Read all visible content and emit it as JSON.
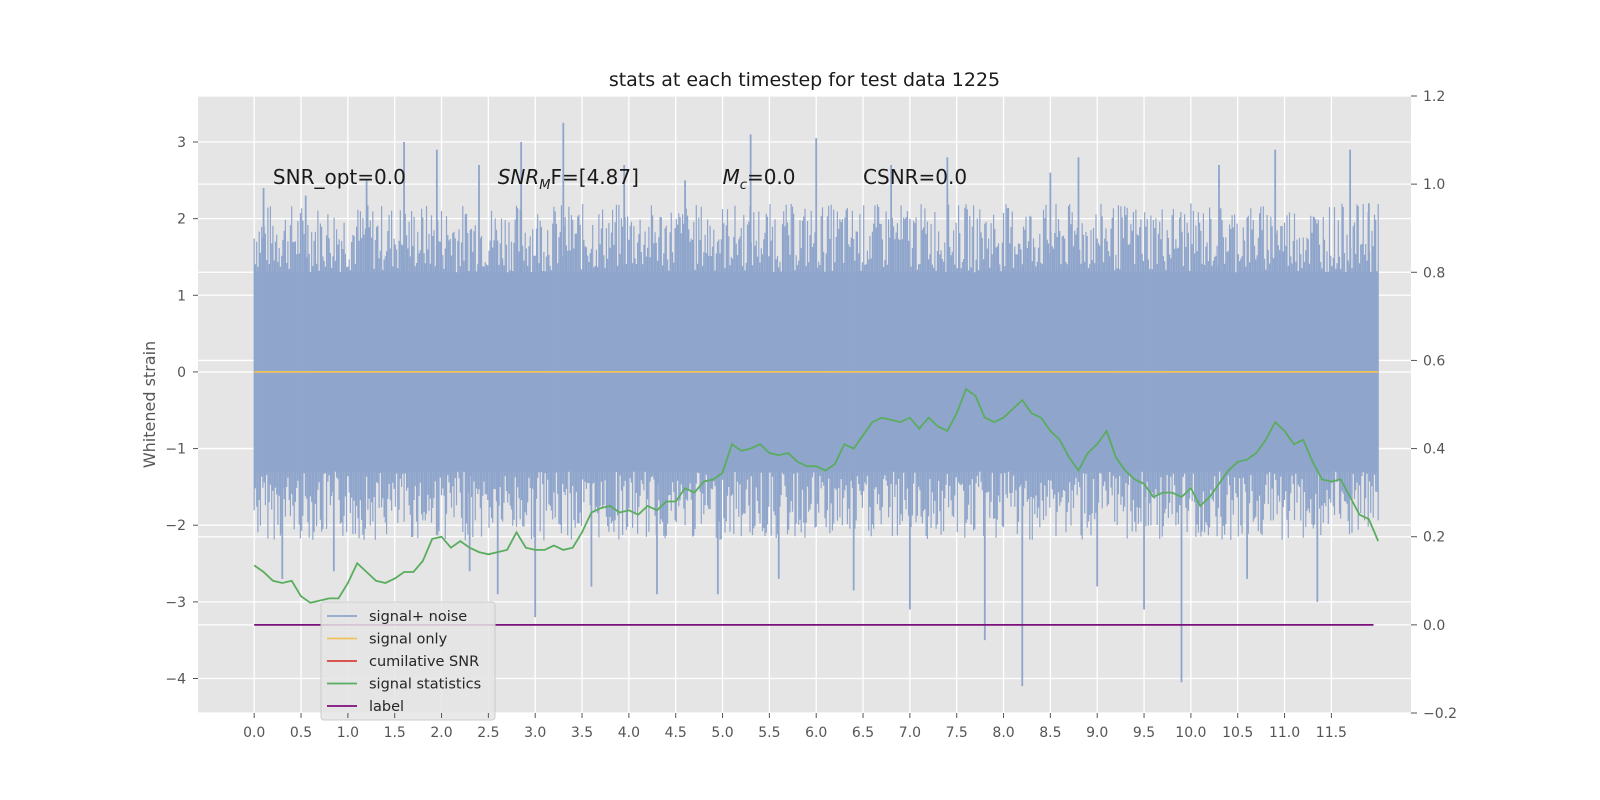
{
  "chart_data": {
    "type": "line",
    "title": "stats at each timestep for test data 1225",
    "xlabel": "",
    "ylabel": "Whitened strain",
    "y2label": "",
    "xlim": [
      -0.6,
      12.35
    ],
    "ylim": [
      -4.45,
      3.6
    ],
    "y2lim": [
      -0.2,
      1.2
    ],
    "grid": true,
    "x_ticks": [
      "0.0",
      "0.5",
      "1.0",
      "1.5",
      "2.0",
      "2.5",
      "3.0",
      "3.5",
      "4.0",
      "4.5",
      "5.0",
      "5.5",
      "6.0",
      "6.5",
      "7.0",
      "7.5",
      "8.0",
      "8.5",
      "9.0",
      "9.5",
      "10.0",
      "10.5",
      "11.0",
      "11.5"
    ],
    "y_ticks": [
      "3",
      "2",
      "1",
      "0",
      "−1",
      "−2",
      "−3",
      "−4"
    ],
    "y2_ticks": [
      "1.2",
      "1.0",
      "0.8",
      "0.6",
      "0.4",
      "0.2",
      "0.0",
      "−0.2"
    ],
    "annotations": [
      {
        "text": "SNR_opt=0.0",
        "x": 0.2,
        "y": 2.45
      },
      {
        "text": "SNR",
        "sub": "M",
        "suffix": "F=[4.87]",
        "x": 2.6,
        "y": 2.45
      },
      {
        "text": "M",
        "sub": "c",
        "suffix": "=0.0",
        "x": 5.0,
        "y": 2.45
      },
      {
        "text": "CSNR=0.0",
        "x": 6.5,
        "y": 2.45
      }
    ],
    "legend": {
      "position": "lower-left",
      "entries": [
        {
          "label": "signal+ noise",
          "color": "#8fa5cc"
        },
        {
          "label": "signal only",
          "color": "#f2c25c"
        },
        {
          "label": "cumilative SNR",
          "color": "#d8403a"
        },
        {
          "label": "signal statistics",
          "color": "#5aad5f"
        },
        {
          "label": "label",
          "color": "#7b0f7b"
        }
      ]
    },
    "series": [
      {
        "name": "signal+ noise",
        "axis": "left",
        "color": "#8fa5cc",
        "x_range": [
          0.0,
          12.0
        ],
        "band_envelope": {
          "upper": 1.3,
          "lower": -1.3
        },
        "spikes": [
          {
            "x": 0.1,
            "y": 2.4
          },
          {
            "x": 0.3,
            "y": -2.7
          },
          {
            "x": 0.55,
            "y": 2.3
          },
          {
            "x": 0.85,
            "y": -2.6
          },
          {
            "x": 1.2,
            "y": 2.5
          },
          {
            "x": 1.6,
            "y": 3.0
          },
          {
            "x": 1.95,
            "y": 2.9
          },
          {
            "x": 2.3,
            "y": -2.6
          },
          {
            "x": 2.4,
            "y": 2.7
          },
          {
            "x": 2.6,
            "y": -2.9
          },
          {
            "x": 2.85,
            "y": 3.0
          },
          {
            "x": 3.0,
            "y": -3.2
          },
          {
            "x": 3.3,
            "y": 3.25
          },
          {
            "x": 3.6,
            "y": -2.8
          },
          {
            "x": 3.95,
            "y": 2.7
          },
          {
            "x": 4.3,
            "y": -2.9
          },
          {
            "x": 4.6,
            "y": 2.5
          },
          {
            "x": 4.95,
            "y": -2.9
          },
          {
            "x": 5.3,
            "y": 3.1
          },
          {
            "x": 5.6,
            "y": -2.7
          },
          {
            "x": 6.0,
            "y": 3.05
          },
          {
            "x": 6.4,
            "y": -2.85
          },
          {
            "x": 6.8,
            "y": 2.7
          },
          {
            "x": 7.0,
            "y": -3.1
          },
          {
            "x": 7.4,
            "y": 2.8
          },
          {
            "x": 7.8,
            "y": -3.5
          },
          {
            "x": 8.2,
            "y": -4.1
          },
          {
            "x": 8.5,
            "y": 2.6
          },
          {
            "x": 8.8,
            "y": 2.8
          },
          {
            "x": 9.0,
            "y": -2.8
          },
          {
            "x": 9.5,
            "y": -3.1
          },
          {
            "x": 9.9,
            "y": -4.05
          },
          {
            "x": 10.3,
            "y": 2.7
          },
          {
            "x": 10.6,
            "y": -2.7
          },
          {
            "x": 10.9,
            "y": 2.9
          },
          {
            "x": 11.35,
            "y": -3.0
          },
          {
            "x": 11.7,
            "y": 2.9
          },
          {
            "x": 11.9,
            "y": 2.2
          }
        ]
      },
      {
        "name": "signal only",
        "axis": "left",
        "color": "#f2c25c",
        "x": [
          0.0,
          12.0
        ],
        "values": [
          0.0,
          0.0
        ]
      },
      {
        "name": "signal statistics",
        "axis": "right",
        "color": "#5aad5f",
        "x": [
          0.0,
          0.1,
          0.2,
          0.3,
          0.4,
          0.5,
          0.6,
          0.7,
          0.8,
          0.9,
          1.0,
          1.1,
          1.2,
          1.3,
          1.4,
          1.5,
          1.6,
          1.7,
          1.8,
          1.9,
          2.0,
          2.1,
          2.2,
          2.3,
          2.4,
          2.5,
          2.6,
          2.7,
          2.8,
          2.9,
          3.0,
          3.1,
          3.2,
          3.3,
          3.4,
          3.5,
          3.6,
          3.7,
          3.8,
          3.9,
          4.0,
          4.1,
          4.2,
          4.3,
          4.4,
          4.5,
          4.6,
          4.7,
          4.8,
          4.9,
          5.0,
          5.1,
          5.2,
          5.3,
          5.4,
          5.5,
          5.6,
          5.7,
          5.8,
          5.9,
          6.0,
          6.1,
          6.2,
          6.3,
          6.4,
          6.5,
          6.6,
          6.7,
          6.8,
          6.9,
          7.0,
          7.1,
          7.2,
          7.3,
          7.4,
          7.5,
          7.6,
          7.7,
          7.8,
          7.9,
          8.0,
          8.1,
          8.2,
          8.3,
          8.4,
          8.5,
          8.6,
          8.7,
          8.8,
          8.9,
          9.0,
          9.1,
          9.2,
          9.3,
          9.4,
          9.5,
          9.6,
          9.7,
          9.8,
          9.9,
          10.0,
          10.1,
          10.2,
          10.3,
          10.4,
          10.5,
          10.6,
          10.7,
          10.8,
          10.9,
          11.0,
          11.1,
          11.2,
          11.3,
          11.4,
          11.5,
          11.6,
          11.7,
          11.8,
          11.9,
          12.0
        ],
        "values": [
          0.135,
          0.12,
          0.1,
          0.095,
          0.1,
          0.065,
          0.05,
          0.055,
          0.06,
          0.06,
          0.095,
          0.14,
          0.12,
          0.1,
          0.095,
          0.105,
          0.12,
          0.12,
          0.145,
          0.195,
          0.2,
          0.175,
          0.19,
          0.175,
          0.165,
          0.16,
          0.165,
          0.17,
          0.21,
          0.175,
          0.17,
          0.17,
          0.18,
          0.17,
          0.175,
          0.21,
          0.255,
          0.265,
          0.27,
          0.255,
          0.26,
          0.25,
          0.27,
          0.26,
          0.28,
          0.28,
          0.31,
          0.3,
          0.325,
          0.33,
          0.345,
          0.41,
          0.395,
          0.4,
          0.41,
          0.39,
          0.385,
          0.39,
          0.37,
          0.36,
          0.36,
          0.35,
          0.365,
          0.41,
          0.4,
          0.43,
          0.46,
          0.47,
          0.465,
          0.46,
          0.47,
          0.445,
          0.47,
          0.45,
          0.44,
          0.48,
          0.535,
          0.52,
          0.47,
          0.46,
          0.47,
          0.49,
          0.51,
          0.48,
          0.47,
          0.44,
          0.42,
          0.38,
          0.35,
          0.39,
          0.41,
          0.44,
          0.38,
          0.35,
          0.33,
          0.32,
          0.29,
          0.3,
          0.3,
          0.29,
          0.31,
          0.27,
          0.29,
          0.32,
          0.35,
          0.37,
          0.375,
          0.39,
          0.42,
          0.46,
          0.44,
          0.41,
          0.42,
          0.37,
          0.33,
          0.325,
          0.33,
          0.29,
          0.25,
          0.24,
          0.19
        ]
      },
      {
        "name": "label",
        "axis": "right",
        "color": "#7b0f7b",
        "x": [
          0.0,
          11.95
        ],
        "values": [
          0.0,
          0.0
        ]
      }
    ]
  }
}
